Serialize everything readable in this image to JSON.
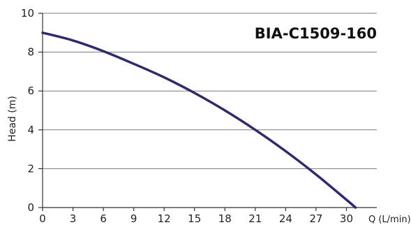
{
  "chart_data": {
    "type": "line",
    "title": "BIA-C1509-160",
    "xlabel": "Q (L/min)",
    "ylabel": "Head (m)",
    "xlim": [
      0,
      33
    ],
    "ylim": [
      0,
      10
    ],
    "x_ticks": [
      0,
      3,
      6,
      9,
      12,
      15,
      18,
      21,
      24,
      27,
      30
    ],
    "y_ticks": [
      0,
      2,
      4,
      6,
      8,
      10
    ],
    "grid": "horizontal",
    "line_color": "#2e2b6b",
    "series": [
      {
        "x": [
          0,
          3,
          6,
          9,
          12,
          15,
          18,
          21,
          24,
          27,
          30,
          30.9
        ],
        "y": [
          9.0,
          8.6,
          8.05,
          7.4,
          6.7,
          5.9,
          5.0,
          4.0,
          2.9,
          1.7,
          0.4,
          0.0
        ]
      }
    ]
  }
}
